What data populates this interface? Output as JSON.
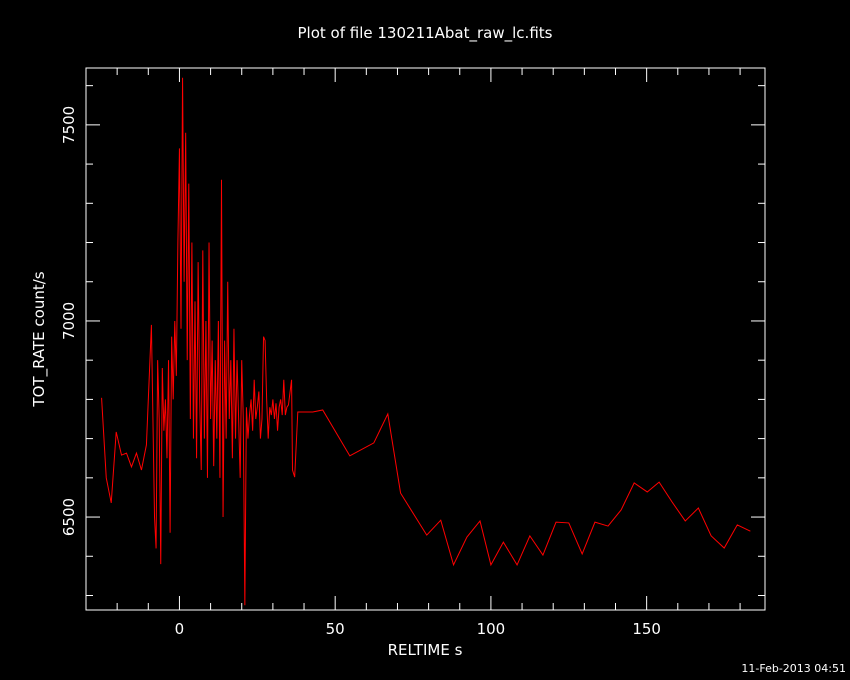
{
  "chart_data": {
    "type": "line",
    "title": "Plot of file 130211Abat_raw_lc.fits",
    "x_label": "RELTIME  s",
    "y_label": "TOT_RATE  count/s",
    "footer": "11-Feb-2013 04:51",
    "color": "#ff0000",
    "xlim": [
      -30,
      188
    ],
    "ylim": [
      6263,
      7645
    ],
    "xticks": [
      0,
      50,
      100,
      150
    ],
    "yticks": [
      6500,
      7000,
      7500
    ],
    "xminorticks": [
      -20,
      -10,
      10,
      20,
      30,
      40,
      60,
      70,
      80,
      90,
      110,
      120,
      130,
      140,
      160,
      170,
      180
    ],
    "yminorticks": [
      6300,
      6400,
      6600,
      6700,
      6800,
      6900,
      7100,
      7200,
      7300,
      7400,
      7600
    ],
    "x": [
      -25,
      -23.5,
      -21.9,
      -20.3,
      -18.6,
      -17,
      -15.4,
      -13.8,
      -12.2,
      -10.6,
      -9,
      -8,
      -7.5,
      -7,
      -6.5,
      -6,
      -5.5,
      -5,
      -4.5,
      -4,
      -3.5,
      -3,
      -2.5,
      -2,
      -1.5,
      -1,
      -0.5,
      0,
      0.5,
      1,
      1.5,
      2,
      2.5,
      3,
      3.5,
      4,
      4.5,
      5,
      5.5,
      6,
      6.5,
      7,
      7.5,
      8,
      8.5,
      9,
      9.5,
      10,
      10.5,
      11,
      11.5,
      12,
      12.5,
      13,
      13.5,
      14,
      14.5,
      15,
      15.5,
      16,
      16.5,
      17,
      17.5,
      18,
      18.5,
      19,
      19.5,
      20,
      20.5,
      21,
      21.5,
      22,
      22.5,
      23,
      23.5,
      24,
      24.5,
      25,
      25.5,
      26,
      26.5,
      27,
      27.5,
      28,
      28.5,
      29,
      29.5,
      30,
      30.5,
      31,
      31.5,
      32,
      32.5,
      33,
      33.5,
      34,
      34.5,
      35,
      36,
      36.3,
      37,
      38,
      42.8,
      46,
      54.7,
      62.4,
      66.9,
      71,
      79.4,
      83.9,
      88,
      92.3,
      96.5,
      100,
      104,
      108.4,
      112.5,
      116.7,
      120.9,
      125,
      129.3,
      133.4,
      137.6,
      141.8,
      146,
      150.2,
      154,
      158.2,
      162.4,
      166.6,
      170.7,
      174.9,
      179.1,
      183.3
    ],
    "values": [
      6804,
      6600,
      6536,
      6717,
      6658,
      6663,
      6628,
      6663,
      6620,
      6684,
      6990,
      6500,
      6420,
      6900,
      6750,
      6380,
      6880,
      6720,
      6800,
      6650,
      6900,
      6460,
      6960,
      6800,
      7000,
      6860,
      7200,
      7440,
      6980,
      7620,
      7100,
      7480,
      6900,
      7350,
      6750,
      7200,
      6700,
      7050,
      6650,
      7150,
      6800,
      6620,
      7180,
      6700,
      7000,
      6600,
      7200,
      6750,
      6950,
      6630,
      6900,
      6700,
      7000,
      6600,
      7360,
      6500,
      6950,
      6700,
      7100,
      6750,
      6900,
      6650,
      6980,
      6700,
      6900,
      6750,
      6600,
      6900,
      6750,
      6275,
      6780,
      6700,
      6760,
      6800,
      6720,
      6850,
      6750,
      6780,
      6820,
      6700,
      6750,
      6960,
      6950,
      6800,
      6700,
      6780,
      6760,
      6800,
      6750,
      6790,
      6720,
      6780,
      6800,
      6760,
      6850,
      6760,
      6780,
      6786,
      6850,
      6620,
      6602,
      6768,
      6768,
      6773,
      6656,
      6689,
      6763,
      6561,
      6454,
      6492,
      6378,
      6449,
      6490,
      6378,
      6436,
      6378,
      6452,
      6403,
      6487,
      6485,
      6406,
      6487,
      6477,
      6518,
      6587,
      6564,
      6589,
      6538,
      6490,
      6523,
      6452,
      6421,
      6480,
      6464
    ]
  }
}
